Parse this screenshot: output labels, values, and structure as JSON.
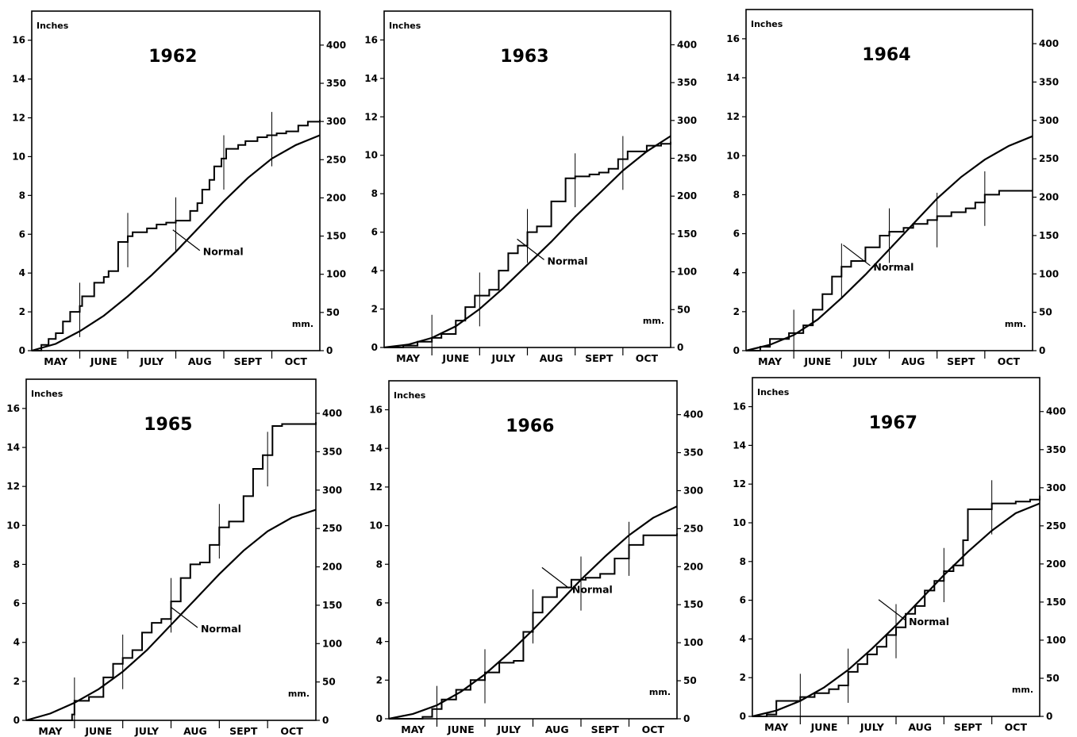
{
  "chart_data": [
    {
      "type": "line",
      "title": "1962",
      "ylabel_left": "Inches",
      "ylabel_right": "mm.",
      "categories": [
        "MAY",
        "JUNE",
        "JULY",
        "AUG",
        "SEPT",
        "OCT"
      ],
      "left_ticks": [
        "0",
        "2",
        "4",
        "6",
        "8",
        "10",
        "12",
        "14",
        "16"
      ],
      "right_ticks": [
        "0",
        "50",
        "100",
        "150",
        "200",
        "250",
        "300",
        "350",
        "400"
      ],
      "ylim": [
        0,
        17.5
      ],
      "xlim": [
        0,
        6
      ],
      "annotation": "Normal",
      "normal_label_point": [
        3.5,
        5.0
      ],
      "series": [
        {
          "name": "Normal",
          "x": [
            0,
            0.5,
            1,
            1.5,
            2,
            2.5,
            3,
            3.5,
            4,
            4.5,
            5,
            5.5,
            6
          ],
          "values": [
            0,
            0.35,
            1.0,
            1.8,
            2.8,
            3.9,
            5.1,
            6.4,
            7.7,
            8.9,
            9.9,
            10.6,
            11.1
          ]
        },
        {
          "name": "",
          "x": [
            0,
            0.2,
            0.35,
            0.5,
            0.65,
            0.8,
            1.0,
            1.05,
            1.3,
            1.5,
            1.6,
            1.8,
            2.0,
            2.1,
            2.4,
            2.6,
            2.8,
            3.0,
            3.3,
            3.45,
            3.55,
            3.7,
            3.8,
            3.95,
            4.05,
            4.3,
            4.45,
            4.7,
            4.9,
            5.1,
            5.3,
            5.55,
            5.75,
            6.0
          ],
          "values": [
            0,
            0.3,
            0.6,
            0.9,
            1.5,
            2.0,
            2.3,
            2.8,
            3.5,
            3.8,
            4.1,
            5.6,
            5.9,
            6.1,
            6.3,
            6.5,
            6.6,
            6.7,
            7.2,
            7.6,
            8.3,
            8.8,
            9.5,
            9.9,
            10.4,
            10.6,
            10.8,
            11.0,
            11.1,
            11.2,
            11.3,
            11.6,
            11.8,
            11.9
          ]
        }
      ]
    },
    {
      "type": "line",
      "title": "1963",
      "ylabel_left": "Inches",
      "ylabel_right": "mm.",
      "categories": [
        "MAY",
        "JUNE",
        "JULY",
        "AUG",
        "SEPT",
        "OCT"
      ],
      "left_ticks": [
        "0",
        "2",
        "4",
        "6",
        "8",
        "10",
        "12",
        "14",
        "16"
      ],
      "right_ticks": [
        "0",
        "50",
        "100",
        "150",
        "200",
        "250",
        "300",
        "350",
        "400"
      ],
      "ylim": [
        0,
        17.5
      ],
      "xlim": [
        0,
        6
      ],
      "annotation": "Normal",
      "normal_label_point": [
        3.35,
        4.4
      ],
      "series": [
        {
          "name": "Normal",
          "x": [
            0,
            0.5,
            1,
            1.5,
            2,
            2.5,
            3,
            3.5,
            4,
            4.5,
            5,
            5.5,
            6
          ],
          "values": [
            0,
            0.15,
            0.5,
            1.1,
            2.0,
            3.1,
            4.3,
            5.5,
            6.8,
            8.0,
            9.2,
            10.2,
            11.0
          ]
        },
        {
          "name": "",
          "x": [
            0,
            0.4,
            0.7,
            1.0,
            1.2,
            1.5,
            1.7,
            1.9,
            2.2,
            2.4,
            2.6,
            2.8,
            3.0,
            3.2,
            3.5,
            3.8,
            4.0,
            4.3,
            4.5,
            4.7,
            4.9,
            5.1,
            5.5,
            5.8,
            6.0
          ],
          "values": [
            0,
            0.1,
            0.3,
            0.5,
            0.7,
            1.4,
            2.1,
            2.7,
            3.0,
            4.0,
            4.9,
            5.3,
            6.0,
            6.3,
            7.6,
            8.8,
            8.9,
            9.0,
            9.1,
            9.3,
            9.8,
            10.2,
            10.5,
            10.6,
            10.7
          ]
        }
      ]
    },
    {
      "type": "line",
      "title": "1964",
      "ylabel_left": "Inches",
      "ylabel_right": "mm.",
      "categories": [
        "MAY",
        "JUNE",
        "JULY",
        "AUG",
        "SEPT",
        "OCT"
      ],
      "left_ticks": [
        "0",
        "2",
        "4",
        "6",
        "8",
        "10",
        "12",
        "14",
        "16"
      ],
      "right_ticks": [
        "0",
        "50",
        "100",
        "150",
        "200",
        "250",
        "300",
        "350",
        "400"
      ],
      "ylim": [
        0,
        17.5
      ],
      "xlim": [
        0,
        6
      ],
      "annotation": "Normal",
      "normal_label_point": [
        2.6,
        4.2
      ],
      "series": [
        {
          "name": "Normal",
          "x": [
            0,
            0.5,
            1,
            1.5,
            2,
            2.5,
            3,
            3.5,
            4,
            4.5,
            5,
            5.5,
            6
          ],
          "values": [
            0,
            0.3,
            0.8,
            1.6,
            2.7,
            3.9,
            5.2,
            6.5,
            7.8,
            8.9,
            9.8,
            10.5,
            11.0
          ]
        },
        {
          "name": "",
          "x": [
            0,
            0.3,
            0.5,
            0.9,
            1.2,
            1.4,
            1.6,
            1.8,
            2.0,
            2.2,
            2.5,
            2.8,
            3.0,
            3.3,
            3.5,
            3.8,
            4.0,
            4.3,
            4.6,
            4.8,
            5.0,
            5.3,
            6.0
          ],
          "values": [
            0,
            0.2,
            0.6,
            0.9,
            1.3,
            2.1,
            2.9,
            3.8,
            4.3,
            4.6,
            5.3,
            5.9,
            6.1,
            6.3,
            6.5,
            6.7,
            6.9,
            7.1,
            7.3,
            7.6,
            8.0,
            8.2,
            8.2
          ]
        }
      ]
    },
    {
      "type": "line",
      "title": "1965",
      "ylabel_left": "Inches",
      "ylabel_right": "mm.",
      "categories": [
        "MAY",
        "JUNE",
        "JULY",
        "AUG",
        "SEPT",
        "OCT"
      ],
      "left_ticks": [
        "0",
        "2",
        "4",
        "6",
        "8",
        "10",
        "12",
        "14",
        "16"
      ],
      "right_ticks": [
        "0",
        "50",
        "100",
        "150",
        "200",
        "250",
        "300",
        "350",
        "400"
      ],
      "ylim": [
        0,
        17.5
      ],
      "xlim": [
        0,
        6
      ],
      "annotation": "Normal",
      "normal_label_point": [
        3.55,
        4.6
      ],
      "series": [
        {
          "name": "Normal",
          "x": [
            0,
            0.5,
            1,
            1.5,
            2,
            2.5,
            3,
            3.5,
            4,
            4.5,
            5,
            5.5,
            6
          ],
          "values": [
            0,
            0.35,
            0.9,
            1.6,
            2.5,
            3.6,
            4.9,
            6.2,
            7.5,
            8.7,
            9.7,
            10.4,
            10.8
          ]
        },
        {
          "name": "",
          "x": [
            0,
            0.95,
            1.0,
            1.3,
            1.6,
            1.8,
            2.0,
            2.2,
            2.4,
            2.6,
            2.8,
            3.0,
            3.2,
            3.4,
            3.6,
            3.8,
            4.0,
            4.2,
            4.5,
            4.7,
            4.9,
            5.1,
            5.3,
            6.0
          ],
          "values": [
            0,
            0.3,
            1.0,
            1.2,
            2.2,
            2.9,
            3.2,
            3.6,
            4.5,
            5.0,
            5.2,
            6.1,
            7.3,
            8.0,
            8.1,
            9.0,
            9.9,
            10.2,
            11.5,
            12.9,
            13.6,
            15.1,
            15.2,
            15.3
          ]
        }
      ]
    },
    {
      "type": "line",
      "title": "1966",
      "ylabel_left": "Inches",
      "ylabel_right": "mm.",
      "categories": [
        "MAY",
        "JUNE",
        "JULY",
        "AUG",
        "SEPT",
        "OCT"
      ],
      "left_ticks": [
        "0",
        "2",
        "4",
        "6",
        "8",
        "10",
        "12",
        "14",
        "16"
      ],
      "right_ticks": [
        "0",
        "50",
        "100",
        "150",
        "200",
        "250",
        "300",
        "350",
        "400"
      ],
      "ylim": [
        0,
        17.5
      ],
      "xlim": [
        0,
        6
      ],
      "annotation": "Normal",
      "normal_label_point": [
        3.75,
        6.6
      ],
      "series": [
        {
          "name": "Normal",
          "x": [
            0,
            0.5,
            1,
            1.5,
            2,
            2.5,
            3,
            3.5,
            4,
            4.5,
            5,
            5.5,
            6
          ],
          "values": [
            0,
            0.25,
            0.7,
            1.4,
            2.3,
            3.4,
            4.6,
            5.9,
            7.2,
            8.4,
            9.5,
            10.4,
            11.0
          ]
        },
        {
          "name": "",
          "x": [
            0,
            0.7,
            0.9,
            1.1,
            1.4,
            1.7,
            2.0,
            2.3,
            2.6,
            2.8,
            3.0,
            3.2,
            3.5,
            3.8,
            4.1,
            4.4,
            4.7,
            5.0,
            5.3,
            6.0
          ],
          "values": [
            0,
            0.1,
            0.5,
            1.0,
            1.5,
            2.0,
            2.4,
            2.9,
            3.0,
            4.5,
            5.5,
            6.3,
            6.8,
            7.2,
            7.3,
            7.5,
            8.3,
            9.0,
            9.5,
            9.6
          ]
        }
      ]
    },
    {
      "type": "line",
      "title": "1967",
      "ylabel_left": "Inches",
      "ylabel_right": "mm.",
      "categories": [
        "MAY",
        "JUNE",
        "JULY",
        "AUG",
        "SEPT",
        "OCT"
      ],
      "left_ticks": [
        "0",
        "2",
        "4",
        "6",
        "8",
        "10",
        "12",
        "14",
        "16"
      ],
      "right_ticks": [
        "0",
        "50",
        "100",
        "150",
        "200",
        "250",
        "300",
        "350",
        "400"
      ],
      "ylim": [
        0,
        17.5
      ],
      "xlim": [
        0,
        6
      ],
      "annotation": "Normal",
      "normal_label_point": [
        3.2,
        4.8
      ],
      "series": [
        {
          "name": "Normal",
          "x": [
            0,
            0.5,
            1,
            1.5,
            2,
            2.5,
            3,
            3.5,
            4,
            4.5,
            5,
            5.5,
            6
          ],
          "values": [
            0,
            0.3,
            0.8,
            1.5,
            2.4,
            3.5,
            4.7,
            6.0,
            7.3,
            8.5,
            9.6,
            10.5,
            11.0
          ]
        },
        {
          "name": "",
          "x": [
            0,
            0.3,
            0.5,
            1.0,
            1.3,
            1.6,
            1.8,
            2.0,
            2.2,
            2.4,
            2.6,
            2.8,
            3.0,
            3.2,
            3.4,
            3.6,
            3.8,
            4.0,
            4.2,
            4.4,
            4.5,
            5.0,
            5.5,
            5.8,
            6.0
          ],
          "values": [
            0,
            0.1,
            0.8,
            1.0,
            1.2,
            1.4,
            1.6,
            2.3,
            2.7,
            3.2,
            3.6,
            4.2,
            4.6,
            5.3,
            5.7,
            6.5,
            7.0,
            7.5,
            7.8,
            9.1,
            10.7,
            11.0,
            11.1,
            11.2,
            11.4
          ]
        }
      ]
    }
  ]
}
